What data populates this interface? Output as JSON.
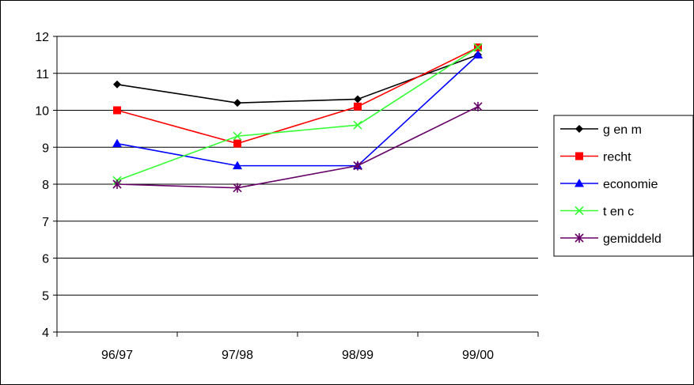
{
  "chart_data": {
    "type": "line",
    "title": "",
    "xlabel": "",
    "ylabel": "",
    "categories": [
      "96/97",
      "97/98",
      "98/99",
      "99/00"
    ],
    "ylim": [
      4,
      12
    ],
    "yticks": [
      4,
      5,
      6,
      7,
      8,
      9,
      10,
      11,
      12
    ],
    "grid": true,
    "legend_position": "right",
    "series": [
      {
        "name": "g en m",
        "values": [
          10.7,
          10.2,
          10.3,
          11.5
        ],
        "color": "#000000",
        "marker": "diamond"
      },
      {
        "name": "recht",
        "values": [
          10.0,
          9.1,
          10.1,
          11.7
        ],
        "color": "#ff0000",
        "marker": "square"
      },
      {
        "name": "economie",
        "values": [
          9.1,
          8.5,
          8.5,
          11.5
        ],
        "color": "#0000ff",
        "marker": "triangle"
      },
      {
        "name": "t en c",
        "values": [
          8.1,
          9.3,
          9.6,
          11.7
        ],
        "color": "#33ff33",
        "marker": "x"
      },
      {
        "name": "gemiddeld",
        "values": [
          8.0,
          7.9,
          8.5,
          10.1
        ],
        "color": "#660066",
        "marker": "star"
      }
    ]
  }
}
